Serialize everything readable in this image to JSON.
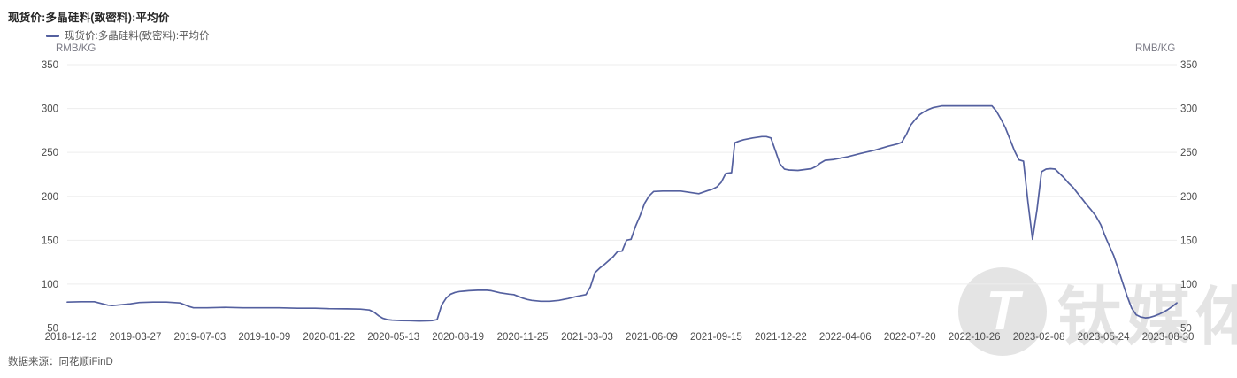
{
  "title": "现货价:多晶硅料(致密料):平均价",
  "legend": {
    "label": "现货价:多晶硅料(致密料):平均价"
  },
  "units": {
    "left": "RMB/KG",
    "right": "RMB/KG"
  },
  "source_note": "数据来源：同花顺iFinD",
  "watermark": {
    "text": "钛媒体",
    "logo_glyph": "T"
  },
  "colors": {
    "line": "#54609f",
    "grid": "#ededed",
    "axis": "#9b9b9b",
    "tick_text": "#4d4d4d"
  },
  "chart_data": {
    "type": "line",
    "title": "现货价:多晶硅料(致密料):平均价",
    "xlabel": "",
    "ylabel": "RMB/KG",
    "ylim": [
      50,
      350
    ],
    "y_ticks": [
      50,
      100,
      150,
      200,
      250,
      300,
      350
    ],
    "grid": true,
    "legend_position": "top-left",
    "x_tick_labels": [
      "2018-12-12",
      "2019-03-27",
      "2019-07-03",
      "2019-10-09",
      "2020-01-22",
      "2020-05-13",
      "2020-08-19",
      "2020-11-25",
      "2021-03-03",
      "2021-06-09",
      "2021-09-15",
      "2021-12-22",
      "2022-04-06",
      "2022-07-20",
      "2022-10-26",
      "2023-02-08",
      "2023-05-24",
      "2023-08-30"
    ],
    "series": [
      {
        "name": "现货价:多晶硅料(致密料):平均价",
        "points": [
          [
            "2018-12-12",
            79.5
          ],
          [
            "2019-01-02",
            80
          ],
          [
            "2019-01-23",
            80
          ],
          [
            "2019-02-13",
            76
          ],
          [
            "2019-02-20",
            75.5
          ],
          [
            "2019-03-06",
            76.5
          ],
          [
            "2019-03-20",
            77.5
          ],
          [
            "2019-04-03",
            79
          ],
          [
            "2019-04-24",
            79.5
          ],
          [
            "2019-05-15",
            79.5
          ],
          [
            "2019-06-05",
            78.5
          ],
          [
            "2019-06-12",
            76.5
          ],
          [
            "2019-06-19",
            74.5
          ],
          [
            "2019-06-26",
            73
          ],
          [
            "2019-07-17",
            73
          ],
          [
            "2019-08-14",
            73.5
          ],
          [
            "2019-09-11",
            73
          ],
          [
            "2019-10-09",
            73
          ],
          [
            "2019-11-06",
            73
          ],
          [
            "2019-12-04",
            72.5
          ],
          [
            "2020-01-01",
            72.5
          ],
          [
            "2020-01-22",
            72
          ],
          [
            "2020-02-19",
            71.8
          ],
          [
            "2020-03-11",
            71.5
          ],
          [
            "2020-03-25",
            70.5
          ],
          [
            "2020-04-01",
            68
          ],
          [
            "2020-04-08",
            64
          ],
          [
            "2020-04-15",
            61
          ],
          [
            "2020-04-22",
            59.5
          ],
          [
            "2020-04-29",
            59
          ],
          [
            "2020-05-13",
            58.5
          ],
          [
            "2020-05-27",
            58.3
          ],
          [
            "2020-06-10",
            58
          ],
          [
            "2020-06-24",
            58.2
          ],
          [
            "2020-07-01",
            58.5
          ],
          [
            "2020-07-08",
            59.5
          ],
          [
            "2020-07-15",
            76
          ],
          [
            "2020-07-22",
            84
          ],
          [
            "2020-07-29",
            88.5
          ],
          [
            "2020-08-05",
            90.5
          ],
          [
            "2020-08-12",
            91.5
          ],
          [
            "2020-08-19",
            92
          ],
          [
            "2020-08-26",
            92.5
          ],
          [
            "2020-09-09",
            93
          ],
          [
            "2020-09-23",
            93
          ],
          [
            "2020-09-30",
            92.5
          ],
          [
            "2020-10-14",
            90
          ],
          [
            "2020-10-28",
            88.5
          ],
          [
            "2020-11-04",
            88
          ],
          [
            "2020-11-11",
            86
          ],
          [
            "2020-11-18",
            84
          ],
          [
            "2020-11-25",
            82.5
          ],
          [
            "2020-12-02",
            81.5
          ],
          [
            "2020-12-09",
            81
          ],
          [
            "2020-12-16",
            80.5
          ],
          [
            "2020-12-30",
            80.5
          ],
          [
            "2021-01-13",
            81.5
          ],
          [
            "2021-01-27",
            83.5
          ],
          [
            "2021-02-10",
            86
          ],
          [
            "2021-02-24",
            88
          ],
          [
            "2021-03-03",
            97
          ],
          [
            "2021-03-10",
            113
          ],
          [
            "2021-03-17",
            118
          ],
          [
            "2021-03-24",
            122
          ],
          [
            "2021-03-31",
            126.5
          ],
          [
            "2021-04-07",
            131
          ],
          [
            "2021-04-14",
            137
          ],
          [
            "2021-04-21",
            137.5
          ],
          [
            "2021-04-28",
            150
          ],
          [
            "2021-05-05",
            151
          ],
          [
            "2021-05-12",
            166
          ],
          [
            "2021-05-19",
            178
          ],
          [
            "2021-05-26",
            192
          ],
          [
            "2021-06-02",
            200.5
          ],
          [
            "2021-06-09",
            205.5
          ],
          [
            "2021-06-23",
            206
          ],
          [
            "2021-07-07",
            206
          ],
          [
            "2021-07-21",
            206
          ],
          [
            "2021-08-04",
            204.5
          ],
          [
            "2021-08-18",
            203
          ],
          [
            "2021-09-01",
            206.5
          ],
          [
            "2021-09-08",
            208
          ],
          [
            "2021-09-15",
            210.5
          ],
          [
            "2021-09-22",
            216
          ],
          [
            "2021-09-29",
            226
          ],
          [
            "2021-10-08",
            227
          ],
          [
            "2021-10-13",
            261
          ],
          [
            "2021-10-20",
            263
          ],
          [
            "2021-10-27",
            264.5
          ],
          [
            "2021-11-10",
            266.5
          ],
          [
            "2021-11-24",
            268
          ],
          [
            "2021-12-01",
            268
          ],
          [
            "2021-12-08",
            266.5
          ],
          [
            "2021-12-15",
            252
          ],
          [
            "2021-12-22",
            237
          ],
          [
            "2021-12-29",
            231
          ],
          [
            "2022-01-05",
            230
          ],
          [
            "2022-01-19",
            229.5
          ],
          [
            "2022-02-09",
            231.5
          ],
          [
            "2022-02-16",
            234
          ],
          [
            "2022-02-23",
            238
          ],
          [
            "2022-03-02",
            241
          ],
          [
            "2022-03-16",
            242
          ],
          [
            "2022-04-06",
            245
          ],
          [
            "2022-04-27",
            249
          ],
          [
            "2022-05-18",
            252.5
          ],
          [
            "2022-06-08",
            257
          ],
          [
            "2022-06-22",
            259.5
          ],
          [
            "2022-06-29",
            261.5
          ],
          [
            "2022-07-06",
            270
          ],
          [
            "2022-07-13",
            281
          ],
          [
            "2022-07-20",
            287.5
          ],
          [
            "2022-07-27",
            293
          ],
          [
            "2022-08-03",
            296.5
          ],
          [
            "2022-08-10",
            299
          ],
          [
            "2022-08-17",
            301
          ],
          [
            "2022-08-24",
            302
          ],
          [
            "2022-08-31",
            303
          ],
          [
            "2022-09-28",
            303
          ],
          [
            "2022-10-26",
            303
          ],
          [
            "2022-11-16",
            303
          ],
          [
            "2022-11-23",
            297
          ],
          [
            "2022-11-30",
            288
          ],
          [
            "2022-12-07",
            278
          ],
          [
            "2022-12-14",
            265
          ],
          [
            "2022-12-21",
            252
          ],
          [
            "2022-12-28",
            241.5
          ],
          [
            "2023-01-04",
            240
          ],
          [
            "2023-01-11",
            193
          ],
          [
            "2023-01-18",
            151
          ],
          [
            "2023-01-25",
            185
          ],
          [
            "2023-02-01",
            228
          ],
          [
            "2023-02-08",
            231
          ],
          [
            "2023-02-15",
            231.5
          ],
          [
            "2023-02-22",
            231
          ],
          [
            "2023-03-01",
            226
          ],
          [
            "2023-03-08",
            221
          ],
          [
            "2023-03-15",
            215
          ],
          [
            "2023-03-22",
            210
          ],
          [
            "2023-03-29",
            203.5
          ],
          [
            "2023-04-05",
            197
          ],
          [
            "2023-04-12",
            190.5
          ],
          [
            "2023-04-19",
            184.5
          ],
          [
            "2023-04-26",
            178
          ],
          [
            "2023-05-04",
            167.5
          ],
          [
            "2023-05-10",
            156
          ],
          [
            "2023-05-17",
            144
          ],
          [
            "2023-05-24",
            132.5
          ],
          [
            "2023-05-31",
            117.5
          ],
          [
            "2023-06-07",
            101.5
          ],
          [
            "2023-06-14",
            86
          ],
          [
            "2023-06-21",
            72.5
          ],
          [
            "2023-06-28",
            65
          ],
          [
            "2023-07-05",
            62.5
          ],
          [
            "2023-07-12",
            61.5
          ],
          [
            "2023-07-19",
            62
          ],
          [
            "2023-07-26",
            63.5
          ],
          [
            "2023-08-02",
            65.5
          ],
          [
            "2023-08-09",
            68
          ],
          [
            "2023-08-16",
            71
          ],
          [
            "2023-08-23",
            74.5
          ],
          [
            "2023-08-30",
            78.5
          ]
        ]
      }
    ]
  }
}
